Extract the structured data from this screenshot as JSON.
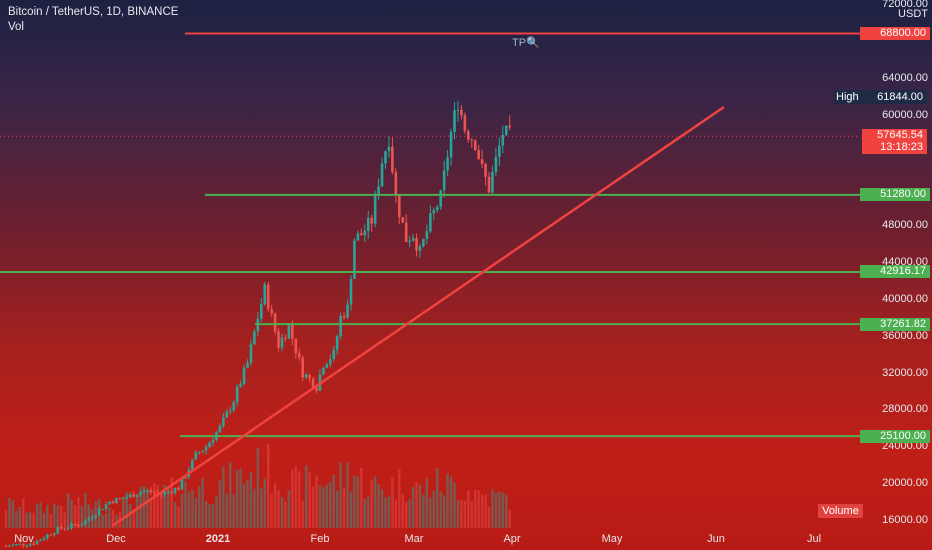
{
  "header": {
    "symbol": "Bitcoin / TetherUS, 1D, BINANCE",
    "indicator": "Vol"
  },
  "currency": "USDT",
  "volume_label": "Volume",
  "chart_data": {
    "type": "candlestick",
    "x_ticks": [
      "Nov",
      "Dec",
      "2021",
      "Feb",
      "Mar",
      "Apr",
      "May",
      "Jun",
      "Jul"
    ],
    "y_ticks": [
      "72000.00",
      "64000.00",
      "60000.00",
      "48000.00",
      "44000.00",
      "40000.00",
      "36000.00",
      "32000.00",
      "28000.00",
      "24000.00",
      "20000.00",
      "16000.00"
    ],
    "ylim": [
      16000,
      72000
    ],
    "horizontal_levels": [
      {
        "label": "68800.00",
        "value": 68800,
        "color": "#f0423f"
      },
      {
        "label": "51280.00",
        "value": 51280,
        "color": "#4caf50"
      },
      {
        "label": "42916.17",
        "value": 42916.17,
        "color": "#4caf50"
      },
      {
        "label": "37261.82",
        "value": 37261.82,
        "color": "#4caf50"
      },
      {
        "label": "25100.00",
        "value": 25100,
        "color": "#4caf50"
      }
    ],
    "high": {
      "label": "High",
      "value_label": "61844.00",
      "value": 61844
    },
    "last_price": {
      "value_label": "57645.54",
      "countdown": "13:18:23",
      "value": 57645.54
    },
    "trendline_color": "#f0423f",
    "tp_label": "TP",
    "up_color": "#26a69a",
    "down_color": "#ef5350",
    "price_path": [
      [
        0,
        13200
      ],
      [
        8,
        13500
      ],
      [
        15,
        15000
      ],
      [
        22,
        15600
      ],
      [
        30,
        18000
      ],
      [
        35,
        18500
      ],
      [
        40,
        19200
      ],
      [
        45,
        18800
      ],
      [
        50,
        19500
      ],
      [
        55,
        23000
      ],
      [
        58,
        24000
      ],
      [
        62,
        26000
      ],
      [
        66,
        29000
      ],
      [
        70,
        33000
      ],
      [
        73,
        38000
      ],
      [
        75,
        41000
      ],
      [
        77,
        38000
      ],
      [
        79,
        35000
      ],
      [
        82,
        37000
      ],
      [
        86,
        32000
      ],
      [
        90,
        30500
      ],
      [
        92,
        33000
      ],
      [
        95,
        34000
      ],
      [
        97,
        38000
      ],
      [
        99,
        39000
      ],
      [
        101,
        46500
      ],
      [
        103,
        47000
      ],
      [
        106,
        48500
      ],
      [
        109,
        55000
      ],
      [
        111,
        57500
      ],
      [
        113,
        51000
      ],
      [
        116,
        46500
      ],
      [
        118,
        47000
      ],
      [
        120,
        45000
      ],
      [
        123,
        48500
      ],
      [
        126,
        51000
      ],
      [
        129,
        58000
      ],
      [
        131,
        61500
      ],
      [
        133,
        58500
      ],
      [
        136,
        57000
      ],
      [
        138,
        54000
      ],
      [
        140,
        52000
      ],
      [
        142,
        55000
      ],
      [
        144,
        58000
      ],
      [
        146,
        57645
      ]
    ],
    "volume_profile": [
      [
        0,
        22
      ],
      [
        10,
        18
      ],
      [
        20,
        25
      ],
      [
        30,
        20
      ],
      [
        40,
        30
      ],
      [
        50,
        35
      ],
      [
        55,
        40
      ],
      [
        60,
        38
      ],
      [
        65,
        45
      ],
      [
        70,
        50
      ],
      [
        75,
        60
      ],
      [
        80,
        45
      ],
      [
        85,
        40
      ],
      [
        90,
        48
      ],
      [
        95,
        42
      ],
      [
        100,
        55
      ],
      [
        105,
        40
      ],
      [
        110,
        38
      ],
      [
        115,
        44
      ],
      [
        120,
        36
      ],
      [
        125,
        42
      ],
      [
        130,
        40
      ],
      [
        135,
        35
      ],
      [
        140,
        30
      ],
      [
        146,
        28
      ]
    ]
  }
}
